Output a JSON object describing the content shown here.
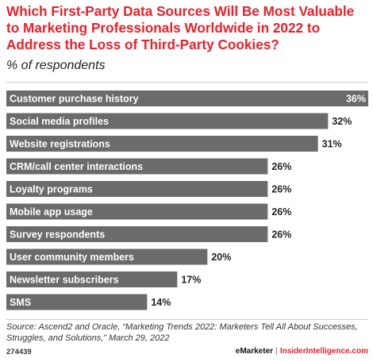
{
  "header": {
    "title": "Which First-Party Data Sources Will Be Most Valuable to Marketing Professionals Worldwide in 2022 to Address the Loss of Third-Party Cookies?",
    "subtitle": "% of respondents"
  },
  "chart_data": {
    "type": "bar",
    "orientation": "horizontal",
    "title": "Which First-Party Data Sources Will Be Most Valuable to Marketing Professionals Worldwide in 2022 to Address the Loss of Third-Party Cookies?",
    "subtitle": "% of respondents",
    "categories": [
      "Customer purchase history",
      "Social media profiles",
      "Website registrations",
      "CRM/call center interactions",
      "Loyalty programs",
      "Mobile app usage",
      "Survey respondents",
      "User community members",
      "Newsletter subscribers",
      "SMS"
    ],
    "values": [
      36,
      32,
      31,
      26,
      26,
      26,
      26,
      20,
      17,
      14
    ],
    "value_labels": [
      "36%",
      "32%",
      "31%",
      "26%",
      "26%",
      "26%",
      "26%",
      "20%",
      "17%",
      "14%"
    ],
    "xlim": [
      0,
      36
    ],
    "bar_color": "#6b6b6b",
    "grid": false
  },
  "footer": {
    "source": "Source: Ascend2 and Oracle, “Marketing Trends 2022: Marketers Tell All About Successes, Struggles, and Solutions,” March 29, 2022",
    "chart_id": "274439",
    "brand_left": "eMarketer",
    "brand_sep": "|",
    "brand_right": "InsiderIntelligence.com"
  },
  "colors": {
    "title": "#e8212a",
    "bar": "#6b6b6b",
    "brand_accent": "#e8212a"
  }
}
